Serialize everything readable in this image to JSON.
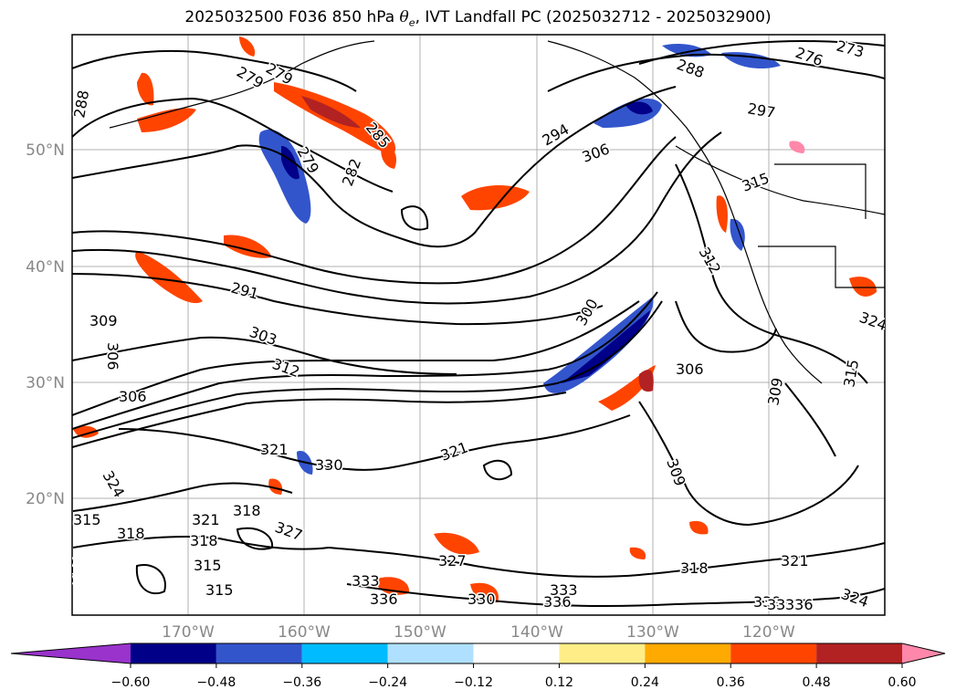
{
  "title": {
    "prefix": "2025032500 F036 850 hPa ",
    "theta": "θ",
    "theta_sub": "e",
    "suffix": ", IVT Landfall PC (2025032712 - 2025032900)"
  },
  "axes": {
    "lat_labels": [
      "50°N",
      "40°N",
      "30°N",
      "20°N"
    ],
    "lon_labels": [
      "170°W",
      "160°W",
      "150°W",
      "140°W",
      "130°W",
      "120°W"
    ]
  },
  "contour_labels": [
    "279",
    "276",
    "273",
    "288",
    "285",
    "279",
    "282",
    "279",
    "294",
    "306",
    "297",
    "288",
    "315",
    "312",
    "291",
    "300",
    "309",
    "306",
    "303",
    "312",
    "306",
    "309",
    "306",
    "321",
    "309",
    "321",
    "324",
    "321",
    "318",
    "327",
    "318",
    "318",
    "315",
    "327",
    "324",
    "330",
    "333",
    "336",
    "339",
    "336",
    "333",
    "330",
    "321",
    "318",
    "315",
    "324",
    "339",
    "336",
    "315",
    "315",
    "315"
  ],
  "colorbar": {
    "ticks": [
      "−0.60",
      "−0.48",
      "−0.36",
      "−0.24",
      "−0.12",
      "0.12",
      "0.24",
      "0.36",
      "0.48",
      "0.60"
    ],
    "colors": [
      "#9933cc",
      "#000088",
      "#3355cc",
      "#00bbff",
      "#b0e0ff",
      "#ffffff",
      "#ffee88",
      "#ffaa00",
      "#ff4400",
      "#b22222",
      "#ff88aa"
    ]
  }
}
